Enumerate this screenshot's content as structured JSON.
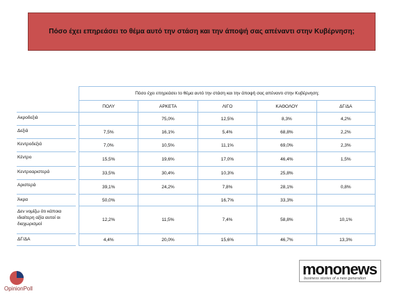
{
  "header": {
    "title": "Πόσο έχει επηρεάσει το θέμα αυτό την στάση και την άποψή σας απέναντι στην Κυβέρνηση;"
  },
  "table": {
    "title": "Πόσο έχει επηρεάσει το θέμα αυτό την στάση και την άποψή σας απέναντι στην Κυβέρνηση;",
    "columns": [
      "ΠΟΛΥ",
      "ΑΡΚΕΤΑ",
      "ΛΙΓΟ",
      "ΚΑΘΟΛΟΥ",
      "ΔΓ/ΔΑ"
    ],
    "rows": [
      {
        "label": "Ακροδεξιά",
        "cells": [
          null,
          "75,0%",
          "12,5%",
          "8,3%",
          "4,2%"
        ]
      },
      {
        "label": "Δεξιά",
        "cells": [
          "7,5%",
          "16,1%",
          "5,4%",
          "68,8%",
          "2,2%"
        ]
      },
      {
        "label": "Κεντροδεξιά",
        "cells": [
          "7,0%",
          "10,5%",
          "11,1%",
          "69,0%",
          "2,3%"
        ]
      },
      {
        "label": "Κέντρο",
        "cells": [
          "15,5%",
          "19,6%",
          "17,0%",
          "46,4%",
          "1,5%"
        ]
      },
      {
        "label": "Κεντροαριστερά",
        "cells": [
          "33,5%",
          "30,4%",
          "10,3%",
          "25,8%",
          null
        ]
      },
      {
        "label": "Αριστερά",
        "cells": [
          "39,1%",
          "24,2%",
          "7,8%",
          "28,1%",
          "0,8%"
        ]
      },
      {
        "label": "Άκρα",
        "cells": [
          "50,0%",
          null,
          "16,7%",
          "33,3%",
          null
        ]
      },
      {
        "label": "Δεν νομίζω ότι κάποια ιδιαίτερη αξία αυτοί οι διαχωρισμοί",
        "cells": [
          "12,2%",
          "11,5%",
          "7,4%",
          "58,8%",
          "10,1%"
        ]
      },
      {
        "label": "ΔΓ/ΔΑ",
        "cells": [
          "4,4%",
          "20,0%",
          "15,6%",
          "46,7%",
          "13,3%"
        ]
      }
    ]
  },
  "footer": {
    "left_logo": "OpinionPoll",
    "right_logo": "mononews",
    "right_tagline": "business stories of a new generation"
  }
}
